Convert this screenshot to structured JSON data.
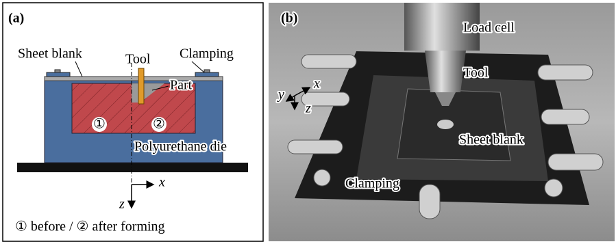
{
  "panel_a": {
    "label": "(a)",
    "sheet_blank": "Sheet blank",
    "tool": "Tool",
    "clamping": "Clamping",
    "part": "Part",
    "marker_1": "①",
    "marker_2": "②",
    "die": "Polyurethane die",
    "axis_x": "x",
    "axis_z": "z",
    "caption": "① before / ② after forming"
  },
  "panel_b": {
    "label": "(b)",
    "load_cell": "Load cell",
    "tool": "Tool",
    "axis_x": "x",
    "axis_y": "y",
    "axis_z": "z",
    "sheet_blank": "Sheet blank",
    "clamping": "Clamping"
  }
}
